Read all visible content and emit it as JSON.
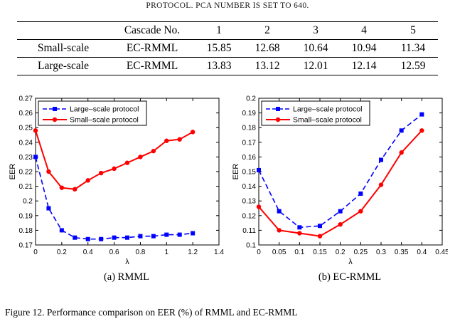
{
  "page": {
    "top_caption": "PROTOCOL. PCA NUMBER IS SET TO 640.",
    "figure_caption": "Figure 12.  Performance comparison on EER (%) of RMML and EC-RMML"
  },
  "table": {
    "header": {
      "col0": "",
      "col1": "Cascade No.",
      "cols": [
        "1",
        "2",
        "3",
        "4",
        "5"
      ]
    },
    "rows": [
      {
        "protocol": "Small-scale",
        "method": "EC-RMML",
        "values": [
          "15.85",
          "12.68",
          "10.64",
          "10.94",
          "11.34"
        ]
      },
      {
        "protocol": "Large-scale",
        "method": "EC-RMML",
        "values": [
          "13.83",
          "13.12",
          "12.01",
          "12.14",
          "12.59"
        ]
      }
    ]
  },
  "chart_data": [
    {
      "type": "line",
      "caption": "(a) RMML",
      "xlabel": "λ",
      "ylabel": "EER",
      "xlim": [
        0,
        1.4
      ],
      "ylim": [
        0.17,
        0.27
      ],
      "xticks": [
        0,
        0.2,
        0.4,
        0.6,
        0.8,
        1,
        1.2,
        1.4
      ],
      "yticks": [
        0.17,
        0.18,
        0.19,
        0.2,
        0.21,
        0.22,
        0.23,
        0.24,
        0.25,
        0.26,
        0.27
      ],
      "legend_position": "top-left",
      "grid": false,
      "x": [
        0,
        0.1,
        0.2,
        0.3,
        0.4,
        0.5,
        0.6,
        0.7,
        0.8,
        0.9,
        1.0,
        1.1,
        1.2
      ],
      "series": [
        {
          "name": "Large–scale protocol",
          "color": "#0000ff",
          "dash": true,
          "marker": "square",
          "values": [
            0.23,
            0.195,
            0.18,
            0.175,
            0.174,
            0.174,
            0.175,
            0.175,
            0.176,
            0.176,
            0.177,
            0.177,
            0.178
          ]
        },
        {
          "name": "Small–scale protocol",
          "color": "#ff0000",
          "dash": false,
          "marker": "circle",
          "values": [
            0.248,
            0.22,
            0.209,
            0.208,
            0.214,
            0.219,
            0.222,
            0.226,
            0.23,
            0.234,
            0.241,
            0.242,
            0.247
          ]
        }
      ]
    },
    {
      "type": "line",
      "caption": "(b) EC-RMML",
      "xlabel": "λ",
      "ylabel": "EER",
      "xlim": [
        0,
        0.45
      ],
      "ylim": [
        0.1,
        0.2
      ],
      "xticks": [
        0,
        0.05,
        0.1,
        0.15,
        0.2,
        0.25,
        0.3,
        0.35,
        0.4,
        0.45
      ],
      "yticks": [
        0.1,
        0.11,
        0.12,
        0.13,
        0.14,
        0.15,
        0.16,
        0.17,
        0.18,
        0.19,
        0.2
      ],
      "legend_position": "top-left",
      "grid": false,
      "x": [
        0,
        0.05,
        0.1,
        0.15,
        0.2,
        0.25,
        0.3,
        0.35,
        0.4
      ],
      "series": [
        {
          "name": "Large–scale protocol",
          "color": "#0000ff",
          "dash": true,
          "marker": "square",
          "values": [
            0.151,
            0.123,
            0.112,
            0.113,
            0.123,
            0.135,
            0.158,
            0.178,
            0.189
          ]
        },
        {
          "name": "Small–scale protocol",
          "color": "#ff0000",
          "dash": false,
          "marker": "circle",
          "values": [
            0.126,
            0.11,
            0.108,
            0.106,
            0.114,
            0.123,
            0.141,
            0.163,
            0.178
          ]
        }
      ]
    }
  ]
}
